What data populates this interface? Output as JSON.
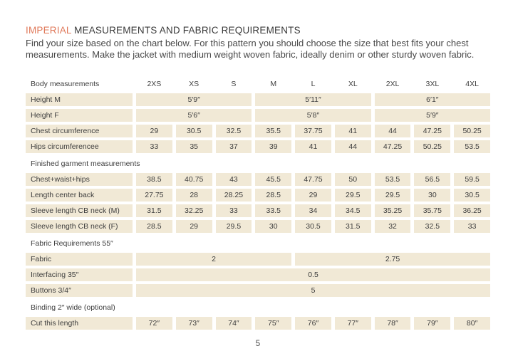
{
  "page": {
    "title_highlight": "IMPERIAL",
    "title_rest": " MEASUREMENTS AND FABRIC REQUIREMENTS",
    "intro_line1": "Find your size based on the chart below. For this pattern you should choose the size that best fits your chest",
    "intro_line2": "measurements. Make the jacket with medium weight woven fabric, ideally denim or other sturdy woven fabric.",
    "page_number": "5"
  },
  "colors": {
    "accent_orange": "#e0795a",
    "cell_beige": "#f1e9d6",
    "text": "#3e3e3e"
  },
  "table": {
    "corner_label": "Body measurements",
    "columns": [
      "2XS",
      "XS",
      "S",
      "M",
      "L",
      "XL",
      "2XL",
      "3XL",
      "4XL"
    ],
    "rows": [
      {
        "type": "row",
        "label": "Height M",
        "cells": [
          {
            "span": 3,
            "text": "5′9″"
          },
          {
            "span": 3,
            "text": "5′11″"
          },
          {
            "span": 3,
            "text": "6′1″"
          }
        ]
      },
      {
        "type": "row",
        "label": "Height F",
        "cells": [
          {
            "span": 3,
            "text": "5′6″"
          },
          {
            "span": 3,
            "text": "5′8″"
          },
          {
            "span": 3,
            "text": "5′9″"
          }
        ]
      },
      {
        "type": "row",
        "label": "Chest circumference",
        "cells": [
          {
            "span": 1,
            "text": "29"
          },
          {
            "span": 1,
            "text": "30.5"
          },
          {
            "span": 1,
            "text": "32.5"
          },
          {
            "span": 1,
            "text": "35.5"
          },
          {
            "span": 1,
            "text": "37.75"
          },
          {
            "span": 1,
            "text": "41"
          },
          {
            "span": 1,
            "text": "44"
          },
          {
            "span": 1,
            "text": "47.25"
          },
          {
            "span": 1,
            "text": "50.25"
          }
        ]
      },
      {
        "type": "row",
        "label": "Hips circumferencee",
        "cells": [
          {
            "span": 1,
            "text": "33"
          },
          {
            "span": 1,
            "text": "35"
          },
          {
            "span": 1,
            "text": "37"
          },
          {
            "span": 1,
            "text": "39"
          },
          {
            "span": 1,
            "text": "41"
          },
          {
            "span": 1,
            "text": "44"
          },
          {
            "span": 1,
            "text": "47.25"
          },
          {
            "span": 1,
            "text": "50.25"
          },
          {
            "span": 1,
            "text": "53.5"
          }
        ]
      },
      {
        "type": "section",
        "label": "Finished garment measurements"
      },
      {
        "type": "row",
        "label": "Chest+waist+hips",
        "cells": [
          {
            "span": 1,
            "text": "38.5"
          },
          {
            "span": 1,
            "text": "40.75"
          },
          {
            "span": 1,
            "text": "43"
          },
          {
            "span": 1,
            "text": "45.5"
          },
          {
            "span": 1,
            "text": "47.75"
          },
          {
            "span": 1,
            "text": "50"
          },
          {
            "span": 1,
            "text": "53.5"
          },
          {
            "span": 1,
            "text": "56.5"
          },
          {
            "span": 1,
            "text": "59.5"
          }
        ]
      },
      {
        "type": "row",
        "label": "Length center back",
        "cells": [
          {
            "span": 1,
            "text": "27.75"
          },
          {
            "span": 1,
            "text": "28"
          },
          {
            "span": 1,
            "text": "28.25"
          },
          {
            "span": 1,
            "text": "28.5"
          },
          {
            "span": 1,
            "text": "29"
          },
          {
            "span": 1,
            "text": "29.5"
          },
          {
            "span": 1,
            "text": "29.5"
          },
          {
            "span": 1,
            "text": "30"
          },
          {
            "span": 1,
            "text": "30.5"
          }
        ]
      },
      {
        "type": "row",
        "label": "Sleeve length CB neck (M)",
        "cells": [
          {
            "span": 1,
            "text": "31.5"
          },
          {
            "span": 1,
            "text": "32.25"
          },
          {
            "span": 1,
            "text": "33"
          },
          {
            "span": 1,
            "text": "33.5"
          },
          {
            "span": 1,
            "text": "34"
          },
          {
            "span": 1,
            "text": "34.5"
          },
          {
            "span": 1,
            "text": "35.25"
          },
          {
            "span": 1,
            "text": "35.75"
          },
          {
            "span": 1,
            "text": "36.25"
          }
        ]
      },
      {
        "type": "row",
        "label": "Sleeve length CB neck (F)",
        "cells": [
          {
            "span": 1,
            "text": "28.5"
          },
          {
            "span": 1,
            "text": "29"
          },
          {
            "span": 1,
            "text": "29.5"
          },
          {
            "span": 1,
            "text": "30"
          },
          {
            "span": 1,
            "text": "30.5"
          },
          {
            "span": 1,
            "text": "31.5"
          },
          {
            "span": 1,
            "text": "32"
          },
          {
            "span": 1,
            "text": "32.5"
          },
          {
            "span": 1,
            "text": "33"
          }
        ]
      },
      {
        "type": "section",
        "label": "Fabric Requirements 55″"
      },
      {
        "type": "row",
        "label": "Fabric",
        "cells": [
          {
            "span": 4,
            "text": "2"
          },
          {
            "span": 5,
            "text": "2.75"
          }
        ]
      },
      {
        "type": "row",
        "label": "Interfacing 35″",
        "cells": [
          {
            "span": 9,
            "text": "0.5"
          }
        ]
      },
      {
        "type": "row",
        "label": "Buttons 3/4″",
        "cells": [
          {
            "span": 9,
            "text": "5"
          }
        ]
      },
      {
        "type": "section",
        "label": "Binding 2″ wide (optional)"
      },
      {
        "type": "row",
        "label": "Cut this length",
        "cells": [
          {
            "span": 1,
            "text": "72″"
          },
          {
            "span": 1,
            "text": "73″"
          },
          {
            "span": 1,
            "text": "74″"
          },
          {
            "span": 1,
            "text": "75″"
          },
          {
            "span": 1,
            "text": "76″"
          },
          {
            "span": 1,
            "text": "77″"
          },
          {
            "span": 1,
            "text": "78″"
          },
          {
            "span": 1,
            "text": "79″"
          },
          {
            "span": 1,
            "text": "80″"
          }
        ]
      }
    ]
  }
}
